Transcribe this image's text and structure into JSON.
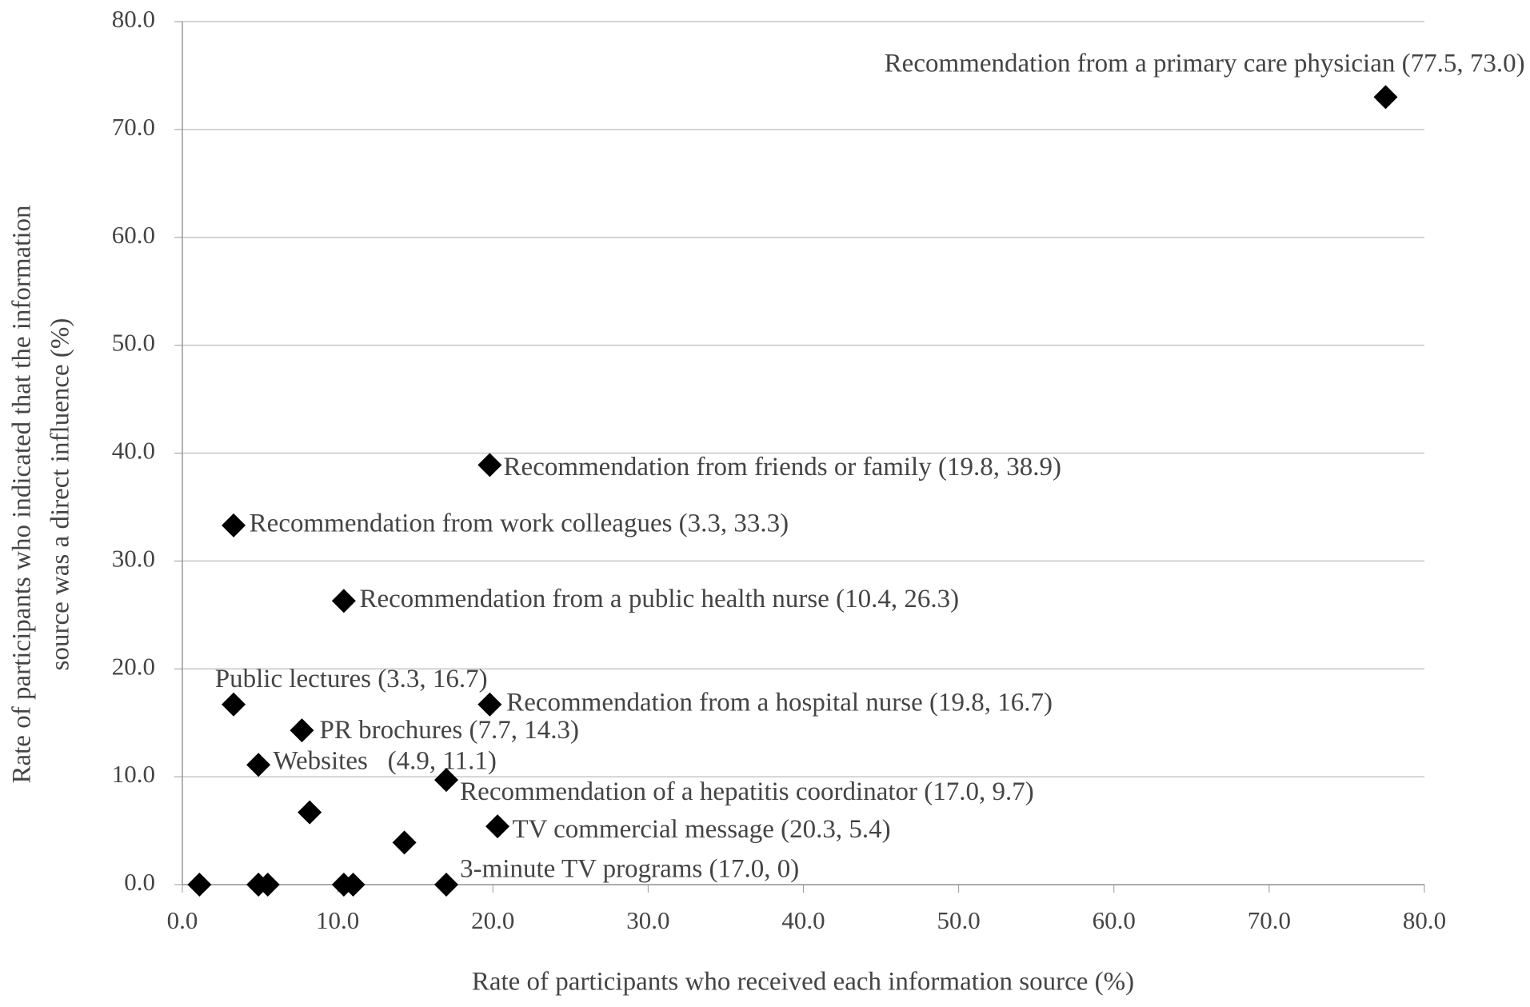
{
  "chart_data": {
    "type": "scatter",
    "xlabel": "Rate of participants who received each information source (%)",
    "ylabel": [
      "Rate of participants who indicated that the information",
      "source was a direct influence (%)"
    ],
    "xlim": [
      0,
      80
    ],
    "ylim": [
      0,
      80
    ],
    "xticks": [
      {
        "value": 0,
        "label": "0.0"
      },
      {
        "value": 10,
        "label": "10.0"
      },
      {
        "value": 20,
        "label": "20.0"
      },
      {
        "value": 30,
        "label": "30.0"
      },
      {
        "value": 40,
        "label": "40.0"
      },
      {
        "value": 50,
        "label": "50.0"
      },
      {
        "value": 60,
        "label": "60.0"
      },
      {
        "value": 70,
        "label": "70.0"
      },
      {
        "value": 80,
        "label": "80.0"
      }
    ],
    "yticks": [
      {
        "value": 0,
        "label": "0.0"
      },
      {
        "value": 10,
        "label": "10.0"
      },
      {
        "value": 20,
        "label": "20.0"
      },
      {
        "value": 30,
        "label": "30.0"
      },
      {
        "value": 40,
        "label": "40.0"
      },
      {
        "value": 50,
        "label": "50.0"
      },
      {
        "value": 60,
        "label": "60.0"
      },
      {
        "value": 70,
        "label": "70.0"
      },
      {
        "value": 80,
        "label": "80.0"
      }
    ],
    "grid": true,
    "series": [
      {
        "color": "#000000",
        "x": [
          77.5,
          19.8,
          3.3,
          10.4,
          3.3,
          19.8,
          7.7,
          4.9,
          17.0,
          20.3,
          17.0,
          8.2,
          14.3,
          1.1,
          4.9,
          5.5,
          10.4,
          11.0
        ],
        "values": [
          73.0,
          38.9,
          33.3,
          26.3,
          16.7,
          16.7,
          14.3,
          11.1,
          9.7,
          5.4,
          0,
          6.7,
          3.9,
          0,
          0,
          0,
          0,
          0
        ],
        "labels": [
          "Recommendation from a primary care physician (77.5, 73.0)",
          "Recommendation from friends or family (19.8, 38.9)",
          "Recommendation from work colleagues (3.3, 33.3)",
          "Recommendation from a public health nurse (10.4, 26.3)",
          "Public lectures (3.3, 16.7)",
          "Recommendation from a hospital nurse (19.8, 16.7)",
          "PR brochures (7.7, 14.3)",
          "Websites   (4.9, 11.1)",
          "Recommendation of a hepatitis coordinator (17.0, 9.7)",
          "TV commercial message (20.3, 5.4)",
          "3-minute TV programs (17.0, 0)",
          null,
          null,
          null,
          null,
          null,
          null,
          null
        ]
      }
    ]
  }
}
